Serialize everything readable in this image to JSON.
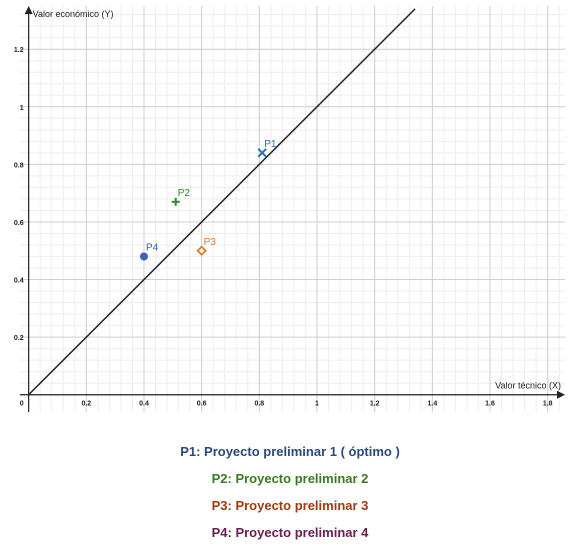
{
  "chart_data": {
    "type": "scatter",
    "xlabel": "Valor técnico (X)",
    "ylabel": "Valor económico (Y)",
    "xlim": [
      -0.03,
      1.86
    ],
    "ylim": [
      -0.06,
      1.35
    ],
    "grid": true,
    "x_ticks": [
      {
        "value": 0.2,
        "label": "0.2"
      },
      {
        "value": 0.4,
        "label": "0.4"
      },
      {
        "value": 0.6,
        "label": "0.6"
      },
      {
        "value": 0.8,
        "label": "0.8"
      },
      {
        "value": 1.0,
        "label": "1"
      },
      {
        "value": 1.2,
        "label": "1.2"
      },
      {
        "value": 1.4,
        "label": "1.4"
      },
      {
        "value": 1.6,
        "label": "1.6"
      },
      {
        "value": 1.8,
        "label": "1.8"
      }
    ],
    "y_ticks": [
      {
        "value": 0.2,
        "label": "0.2"
      },
      {
        "value": 0.4,
        "label": "0.4"
      },
      {
        "value": 0.6,
        "label": "0.6"
      },
      {
        "value": 0.8,
        "label": "0.8"
      },
      {
        "value": 1.0,
        "label": "1"
      },
      {
        "value": 1.2,
        "label": "1.2"
      }
    ],
    "origin_label": "0",
    "line": {
      "x": [
        0,
        1.34
      ],
      "y": [
        0,
        1.34
      ],
      "color": "#222222"
    },
    "points": [
      {
        "label": "P1",
        "x": 0.81,
        "y": 0.84,
        "marker": "x",
        "color": "#2f6fb6"
      },
      {
        "label": "P2",
        "x": 0.51,
        "y": 0.67,
        "marker": "plus",
        "color": "#2e8b2e"
      },
      {
        "label": "P3",
        "x": 0.6,
        "y": 0.5,
        "marker": "diamond",
        "color": "#e07a30"
      },
      {
        "label": "P4",
        "x": 0.4,
        "y": 0.48,
        "marker": "circle",
        "color": "#3f5fc0"
      }
    ]
  },
  "legend": [
    {
      "text": "P1: Proyecto preliminar 1    ( óptimo )",
      "color": "#2a4a7a"
    },
    {
      "text": "P2: Proyecto preliminar 2",
      "color": "#3a7a20"
    },
    {
      "text": "P3: Proyecto preliminar 3",
      "color": "#a03a10"
    },
    {
      "text": "P4: Proyecto preliminar 4",
      "color": "#6a2050"
    }
  ]
}
